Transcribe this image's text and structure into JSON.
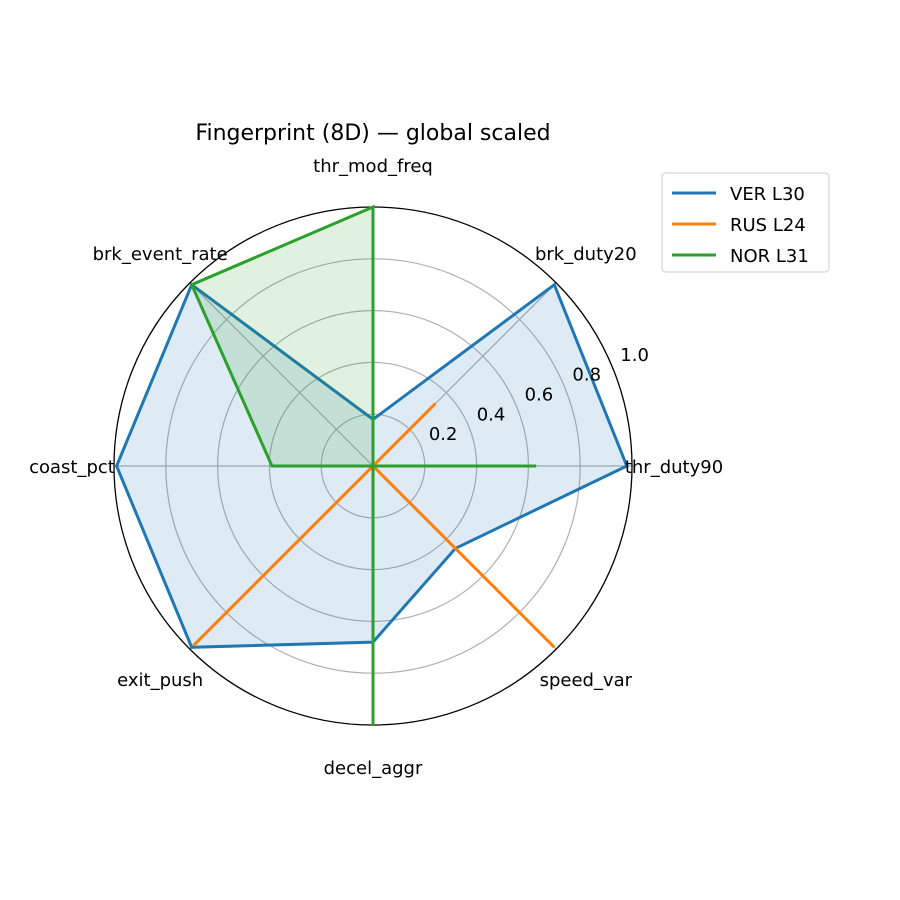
{
  "chart_data": {
    "type": "radar",
    "title": "Fingerprint (8D) — global scaled",
    "axes": [
      "thr_duty90",
      "brk_duty20",
      "thr_mod_freq",
      "brk_event_rate",
      "coast_pct",
      "exit_push",
      "decel_aggr",
      "speed_var"
    ],
    "rlim": [
      0,
      1.0
    ],
    "radial_ticks": [
      0.2,
      0.4,
      0.6,
      0.8,
      1.0
    ],
    "radial_tick_labels": [
      "0.2",
      "0.4",
      "0.6",
      "0.8",
      "1.0"
    ],
    "grid": true,
    "legend_position": "upper-right outside",
    "series": [
      {
        "name": "VER L30",
        "color": "#1f77b4",
        "fill": true,
        "values": [
          0.98,
          0.99,
          0.18,
          0.99,
          0.99,
          0.99,
          0.68,
          0.45
        ]
      },
      {
        "name": "RUS L24",
        "color": "#ff7f0e",
        "fill": false,
        "values": [
          0.0,
          0.34,
          0.0,
          0.0,
          0.0,
          0.98,
          0.0,
          0.99
        ]
      },
      {
        "name": "NOR L31",
        "color": "#2ca02c",
        "fill": true,
        "values": [
          0.63,
          0.0,
          1.0,
          0.99,
          0.39,
          0.0,
          1.0,
          0.0
        ]
      }
    ]
  }
}
